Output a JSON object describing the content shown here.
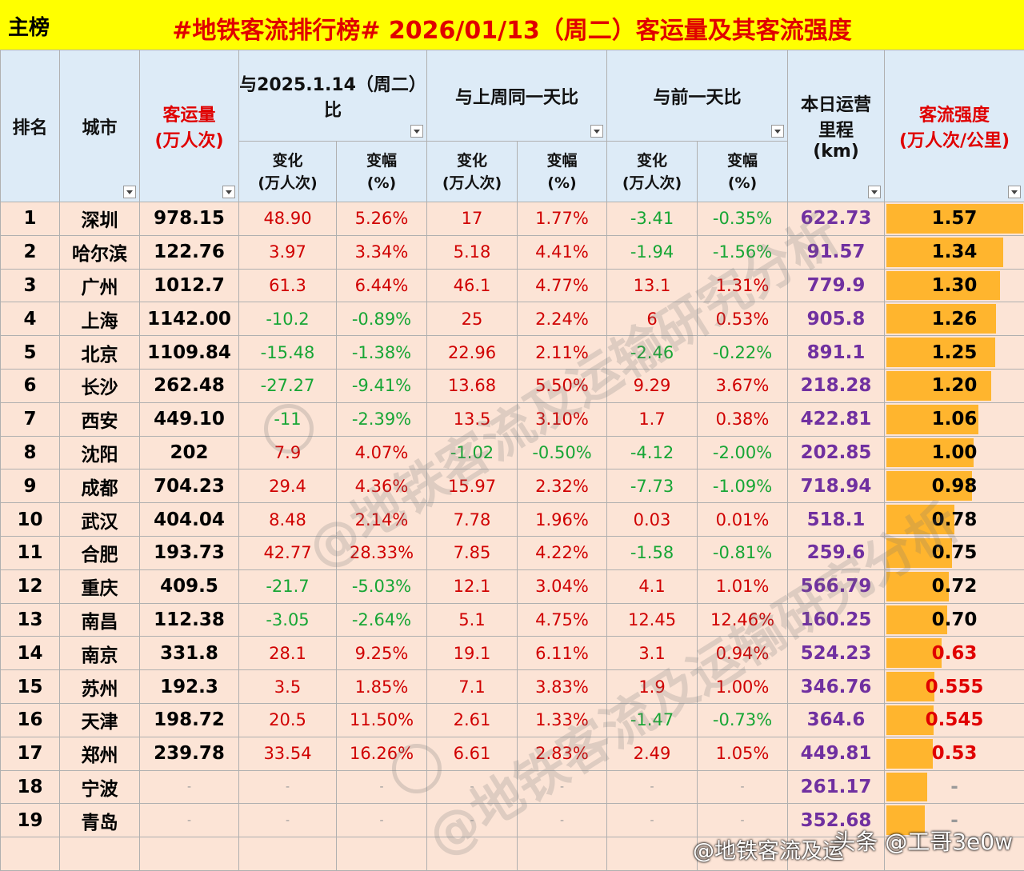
{
  "header": {
    "main_label": "主榜",
    "title": "#地铁客流排行榜# 2026/01/13（周二）客运量及其客流强度"
  },
  "columns": {
    "rank": "排名",
    "city": "城市",
    "volume": "客运量",
    "volume_unit": "(万人次)",
    "yoy": "与2025.1.14（周二）",
    "yoy_suffix": "比",
    "wow": "与上周同一天比",
    "dod": "与前一天比",
    "change": "变化",
    "change_unit": "(万人次)",
    "rate": "变幅",
    "rate_unit": "(%)",
    "km_line1": "本日运营",
    "km_line2": "里程",
    "km_line3": "(km)",
    "intensity": "客流强度",
    "intensity_unit": "(万人次/公里)"
  },
  "rows": [
    {
      "rank": "1",
      "city": "深圳",
      "volume": "978.15",
      "yoy_c": "48.90",
      "yoy_p": "5.26%",
      "wow_c": "17",
      "wow_p": "1.77%",
      "dod_c": "-3.41",
      "dod_p": "-0.35%",
      "km": "622.73",
      "intensity": "1.57",
      "intensity_value": 1.57
    },
    {
      "rank": "2",
      "city": "哈尔滨",
      "volume": "122.76",
      "yoy_c": "3.97",
      "yoy_p": "3.34%",
      "wow_c": "5.18",
      "wow_p": "4.41%",
      "dod_c": "-1.94",
      "dod_p": "-1.56%",
      "km": "91.57",
      "intensity": "1.34",
      "intensity_value": 1.34
    },
    {
      "rank": "3",
      "city": "广州",
      "volume": "1012.7",
      "yoy_c": "61.3",
      "yoy_p": "6.44%",
      "wow_c": "46.1",
      "wow_p": "4.77%",
      "dod_c": "13.1",
      "dod_p": "1.31%",
      "km": "779.9",
      "intensity": "1.30",
      "intensity_value": 1.3
    },
    {
      "rank": "4",
      "city": "上海",
      "volume": "1142.00",
      "yoy_c": "-10.2",
      "yoy_p": "-0.89%",
      "wow_c": "25",
      "wow_p": "2.24%",
      "dod_c": "6",
      "dod_p": "0.53%",
      "km": "905.8",
      "intensity": "1.26",
      "intensity_value": 1.26
    },
    {
      "rank": "5",
      "city": "北京",
      "volume": "1109.84",
      "yoy_c": "-15.48",
      "yoy_p": "-1.38%",
      "wow_c": "22.96",
      "wow_p": "2.11%",
      "dod_c": "-2.46",
      "dod_p": "-0.22%",
      "km": "891.1",
      "intensity": "1.25",
      "intensity_value": 1.25
    },
    {
      "rank": "6",
      "city": "长沙",
      "volume": "262.48",
      "yoy_c": "-27.27",
      "yoy_p": "-9.41%",
      "wow_c": "13.68",
      "wow_p": "5.50%",
      "dod_c": "9.29",
      "dod_p": "3.67%",
      "km": "218.28",
      "intensity": "1.20",
      "intensity_value": 1.2
    },
    {
      "rank": "7",
      "city": "西安",
      "volume": "449.10",
      "yoy_c": "-11",
      "yoy_p": "-2.39%",
      "wow_c": "13.5",
      "wow_p": "3.10%",
      "dod_c": "1.7",
      "dod_p": "0.38%",
      "km": "422.81",
      "intensity": "1.06",
      "intensity_value": 1.06
    },
    {
      "rank": "8",
      "city": "沈阳",
      "volume": "202",
      "yoy_c": "7.9",
      "yoy_p": "4.07%",
      "wow_c": "-1.02",
      "wow_p": "-0.50%",
      "dod_c": "-4.12",
      "dod_p": "-2.00%",
      "km": "202.85",
      "intensity": "1.00",
      "intensity_value": 1.0
    },
    {
      "rank": "9",
      "city": "成都",
      "volume": "704.23",
      "yoy_c": "29.4",
      "yoy_p": "4.36%",
      "wow_c": "15.97",
      "wow_p": "2.32%",
      "dod_c": "-7.73",
      "dod_p": "-1.09%",
      "km": "718.94",
      "intensity": "0.98",
      "intensity_value": 0.98
    },
    {
      "rank": "10",
      "city": "武汉",
      "volume": "404.04",
      "yoy_c": "8.48",
      "yoy_p": "2.14%",
      "wow_c": "7.78",
      "wow_p": "1.96%",
      "dod_c": "0.03",
      "dod_p": "0.01%",
      "km": "518.1",
      "intensity": "0.78",
      "intensity_value": 0.78
    },
    {
      "rank": "11",
      "city": "合肥",
      "volume": "193.73",
      "yoy_c": "42.77",
      "yoy_p": "28.33%",
      "wow_c": "7.85",
      "wow_p": "4.22%",
      "dod_c": "-1.58",
      "dod_p": "-0.81%",
      "km": "259.6",
      "intensity": "0.75",
      "intensity_value": 0.75
    },
    {
      "rank": "12",
      "city": "重庆",
      "volume": "409.5",
      "yoy_c": "-21.7",
      "yoy_p": "-5.03%",
      "wow_c": "12.1",
      "wow_p": "3.04%",
      "dod_c": "4.1",
      "dod_p": "1.01%",
      "km": "566.79",
      "intensity": "0.72",
      "intensity_value": 0.72
    },
    {
      "rank": "13",
      "city": "南昌",
      "volume": "112.38",
      "yoy_c": "-3.05",
      "yoy_p": "-2.64%",
      "wow_c": "5.1",
      "wow_p": "4.75%",
      "dod_c": "12.45",
      "dod_p": "12.46%",
      "km": "160.25",
      "intensity": "0.70",
      "intensity_value": 0.7
    },
    {
      "rank": "14",
      "city": "南京",
      "volume": "331.8",
      "yoy_c": "28.1",
      "yoy_p": "9.25%",
      "wow_c": "19.1",
      "wow_p": "6.11%",
      "dod_c": "3.1",
      "dod_p": "0.94%",
      "km": "524.23",
      "intensity": "0.63",
      "intensity_value": 0.63
    },
    {
      "rank": "15",
      "city": "苏州",
      "volume": "192.3",
      "yoy_c": "3.5",
      "yoy_p": "1.85%",
      "wow_c": "7.1",
      "wow_p": "3.83%",
      "dod_c": "1.9",
      "dod_p": "1.00%",
      "km": "346.76",
      "intensity": "0.555",
      "intensity_value": 0.555
    },
    {
      "rank": "16",
      "city": "天津",
      "volume": "198.72",
      "yoy_c": "20.5",
      "yoy_p": "11.50%",
      "wow_c": "2.61",
      "wow_p": "1.33%",
      "dod_c": "-1.47",
      "dod_p": "-0.73%",
      "km": "364.6",
      "intensity": "0.545",
      "intensity_value": 0.545
    },
    {
      "rank": "17",
      "city": "郑州",
      "volume": "239.78",
      "yoy_c": "33.54",
      "yoy_p": "16.26%",
      "wow_c": "6.61",
      "wow_p": "2.83%",
      "dod_c": "2.49",
      "dod_p": "1.05%",
      "km": "449.81",
      "intensity": "0.53",
      "intensity_value": 0.53
    },
    {
      "rank": "18",
      "city": "宁波",
      "volume": "-",
      "yoy_c": "-",
      "yoy_p": "-",
      "wow_c": "-",
      "wow_p": "-",
      "dod_c": "-",
      "dod_p": "-",
      "km": "261.17",
      "intensity": "-",
      "intensity_value": 0.47
    },
    {
      "rank": "19",
      "city": "青岛",
      "volume": "-",
      "yoy_c": "-",
      "yoy_p": "-",
      "wow_c": "-",
      "wow_p": "-",
      "dod_c": "-",
      "dod_p": "-",
      "km": "352.68",
      "intensity": "-",
      "intensity_value": 0.44
    }
  ],
  "intensity_max": 1.57,
  "watermark": "@地铁客流及运输研究分析",
  "credit_platform": "头条 @工哥3e0w",
  "credit_weibo": "@地铁客流及运",
  "colors": {
    "header_bg": "#FFFF00",
    "title_red": "#E00000",
    "row_bg": "#FCE4D6",
    "head_bg": "#DDEBF7",
    "pos": "#D00000",
    "neg": "#17A635",
    "km": "#7030A0",
    "bar": "#FFB52E"
  }
}
